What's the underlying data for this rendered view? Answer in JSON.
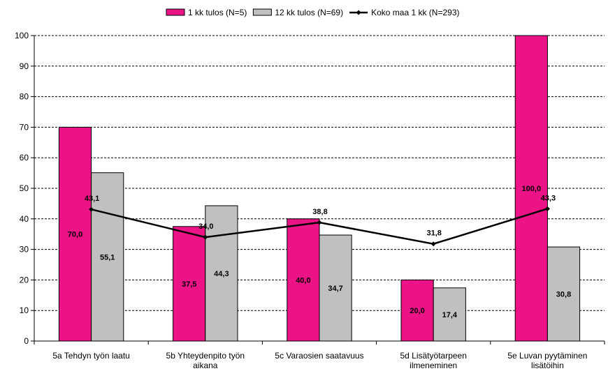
{
  "chart_data": {
    "type": "bar",
    "categories": [
      [
        "5a Tehdyn työn laatu"
      ],
      [
        "5b Yhteydenpito työn",
        "aikana"
      ],
      [
        "5c Varaosien saatavuus"
      ],
      [
        "5d Lisätyötarpeen",
        "ilmeneminen"
      ],
      [
        "5e Luvan pyytäminen",
        "lisätöihin"
      ]
    ],
    "series": [
      {
        "name": "1 kk tulos (N=5)",
        "kind": "bar",
        "color": "#ec1387",
        "values": [
          70.0,
          37.5,
          40.0,
          20.0,
          100.0
        ],
        "labels": [
          "70,0",
          "37,5",
          "40,0",
          "20,0",
          "100,0"
        ]
      },
      {
        "name": "12 kk tulos (N=69)",
        "kind": "bar",
        "color": "#c0c0c0",
        "values": [
          55.1,
          44.3,
          34.7,
          17.4,
          30.8
        ],
        "labels": [
          "55,1",
          "44,3",
          "34,7",
          "17,4",
          "30,8"
        ]
      },
      {
        "name": "Koko maa 1 kk (N=293)",
        "kind": "line",
        "color": "#000000",
        "values": [
          43.1,
          34.0,
          38.8,
          31.8,
          43.3
        ],
        "labels": [
          "43,1",
          "34,0",
          "38,8",
          "31,8",
          "43,3"
        ]
      }
    ],
    "y_ticks": [
      "0",
      "10",
      "20",
      "30",
      "40",
      "50",
      "60",
      "70",
      "80",
      "90",
      "100"
    ],
    "ylim": [
      0,
      100
    ],
    "grid": true,
    "legend_position": "top"
  }
}
